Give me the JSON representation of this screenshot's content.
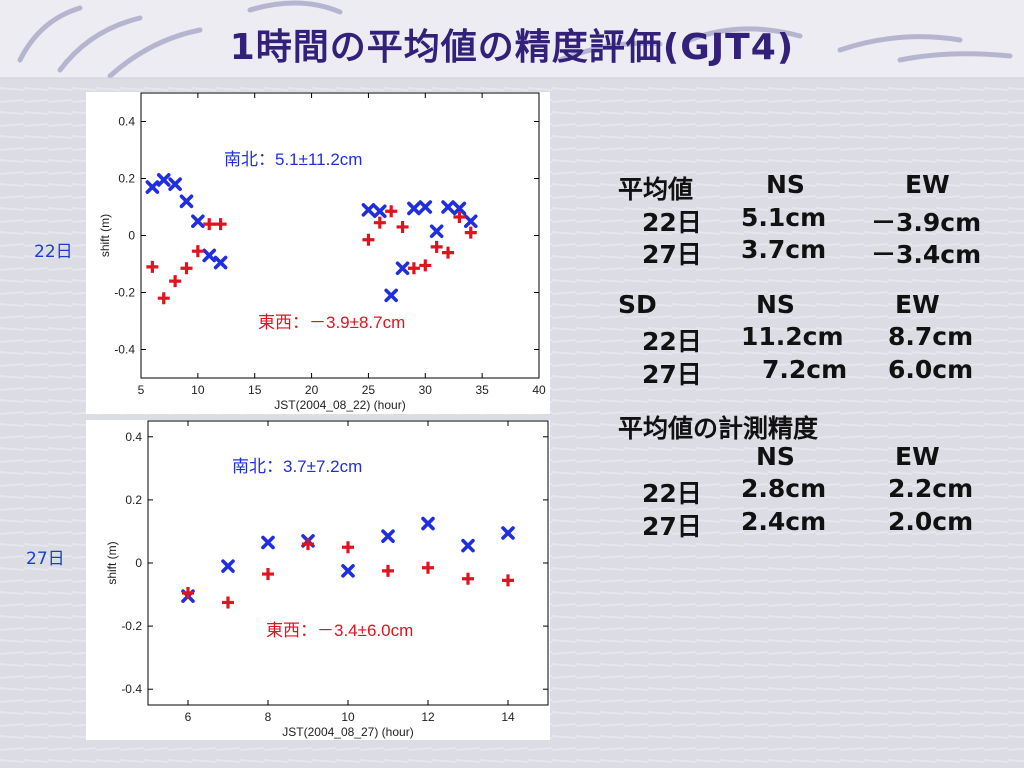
{
  "slide": {
    "title": "1時間の平均値の精度評価(GJT4)"
  },
  "left_labels": {
    "day22": "22日",
    "day27": "27日"
  },
  "stats": {
    "mean_header": {
      "label": "平均値",
      "ns": "NS",
      "ew": "EW"
    },
    "mean_rows": [
      {
        "day": "22日",
        "ns": "5.1cm",
        "ew": "－3.9cm"
      },
      {
        "day": "27日",
        "ns": "3.7cm",
        "ew": "－3.4cm"
      }
    ],
    "sd_header": {
      "label": "SD",
      "ns": "NS",
      "ew": "EW"
    },
    "sd_rows": [
      {
        "day": "22日",
        "ns": "11.2cm",
        "ew": "8.7cm"
      },
      {
        "day": "27日",
        "ns": "7.2cm",
        "ew": "6.0cm"
      }
    ],
    "precision_title": "平均値の計測精度",
    "precision_header": {
      "ns": "NS",
      "ew": "EW"
    },
    "precision_rows": [
      {
        "day": "22日",
        "ns": "2.8cm",
        "ew": "2.2cm"
      },
      {
        "day": "27日",
        "ns": "2.4cm",
        "ew": "2.0cm"
      }
    ]
  },
  "colors": {
    "ns": "#1f2fe0",
    "ew": "#e0141e",
    "title": "#33207a"
  },
  "chart_data": [
    {
      "type": "scatter",
      "xlabel": "JST(2004_08_22) (hour)",
      "ylabel": "shift (m)",
      "xlim": [
        5,
        40
      ],
      "ylim": [
        -0.5,
        0.5
      ],
      "xticks": [
        5,
        10,
        15,
        20,
        25,
        30,
        35,
        40
      ],
      "yticks": [
        -0.4,
        -0.2,
        0,
        0.2,
        0.4
      ],
      "annotations": {
        "ns": "南北：5.1±11.2cm",
        "ew": "東西：－3.9±8.7cm"
      },
      "series": [
        {
          "marker": "x",
          "color": "#1f2fe0",
          "points": [
            [
              6,
              0.17
            ],
            [
              7,
              0.195
            ],
            [
              8,
              0.18
            ],
            [
              9,
              0.12
            ],
            [
              10,
              0.05
            ],
            [
              11,
              -0.07
            ],
            [
              12,
              -0.095
            ],
            [
              25,
              0.09
            ],
            [
              26,
              0.085
            ],
            [
              27,
              -0.21
            ],
            [
              28,
              -0.115
            ],
            [
              29,
              0.095
            ],
            [
              30,
              0.1
            ],
            [
              31,
              0.015
            ],
            [
              32,
              0.1
            ],
            [
              33,
              0.095
            ],
            [
              34,
              0.05
            ]
          ]
        },
        {
          "marker": "+",
          "color": "#e0141e",
          "points": [
            [
              6,
              -0.11
            ],
            [
              7,
              -0.22
            ],
            [
              8,
              -0.16
            ],
            [
              9,
              -0.115
            ],
            [
              10,
              -0.055
            ],
            [
              11,
              0.04
            ],
            [
              12,
              0.04
            ],
            [
              25,
              -0.015
            ],
            [
              26,
              0.045
            ],
            [
              27,
              0.085
            ],
            [
              28,
              0.03
            ],
            [
              29,
              -0.115
            ],
            [
              30,
              -0.105
            ],
            [
              31,
              -0.04
            ],
            [
              32,
              -0.06
            ],
            [
              33,
              0.065
            ],
            [
              34,
              0.01
            ]
          ]
        }
      ]
    },
    {
      "type": "scatter",
      "xlabel": "JST(2004_08_27) (hour)",
      "ylabel": "shift (m)",
      "xlim": [
        5,
        15
      ],
      "ylim": [
        -0.45,
        0.45
      ],
      "xticks": [
        6,
        8,
        10,
        12,
        14
      ],
      "yticks": [
        -0.4,
        -0.2,
        0,
        0.2,
        0.4
      ],
      "annotations": {
        "ns": "南北：3.7±7.2cm",
        "ew": "東西：－3.4±6.0cm"
      },
      "series": [
        {
          "marker": "x",
          "color": "#1f2fe0",
          "points": [
            [
              6,
              -0.105
            ],
            [
              7,
              -0.01
            ],
            [
              8,
              0.065
            ],
            [
              9,
              0.07
            ],
            [
              10,
              -0.025
            ],
            [
              11,
              0.085
            ],
            [
              12,
              0.125
            ],
            [
              13,
              0.055
            ],
            [
              14,
              0.095
            ]
          ]
        },
        {
          "marker": "+",
          "color": "#e0141e",
          "points": [
            [
              6,
              -0.095
            ],
            [
              7,
              -0.125
            ],
            [
              8,
              -0.035
            ],
            [
              9,
              0.06
            ],
            [
              10,
              0.05
            ],
            [
              11,
              -0.025
            ],
            [
              12,
              -0.015
            ],
            [
              13,
              -0.05
            ],
            [
              14,
              -0.055
            ]
          ]
        }
      ]
    }
  ]
}
